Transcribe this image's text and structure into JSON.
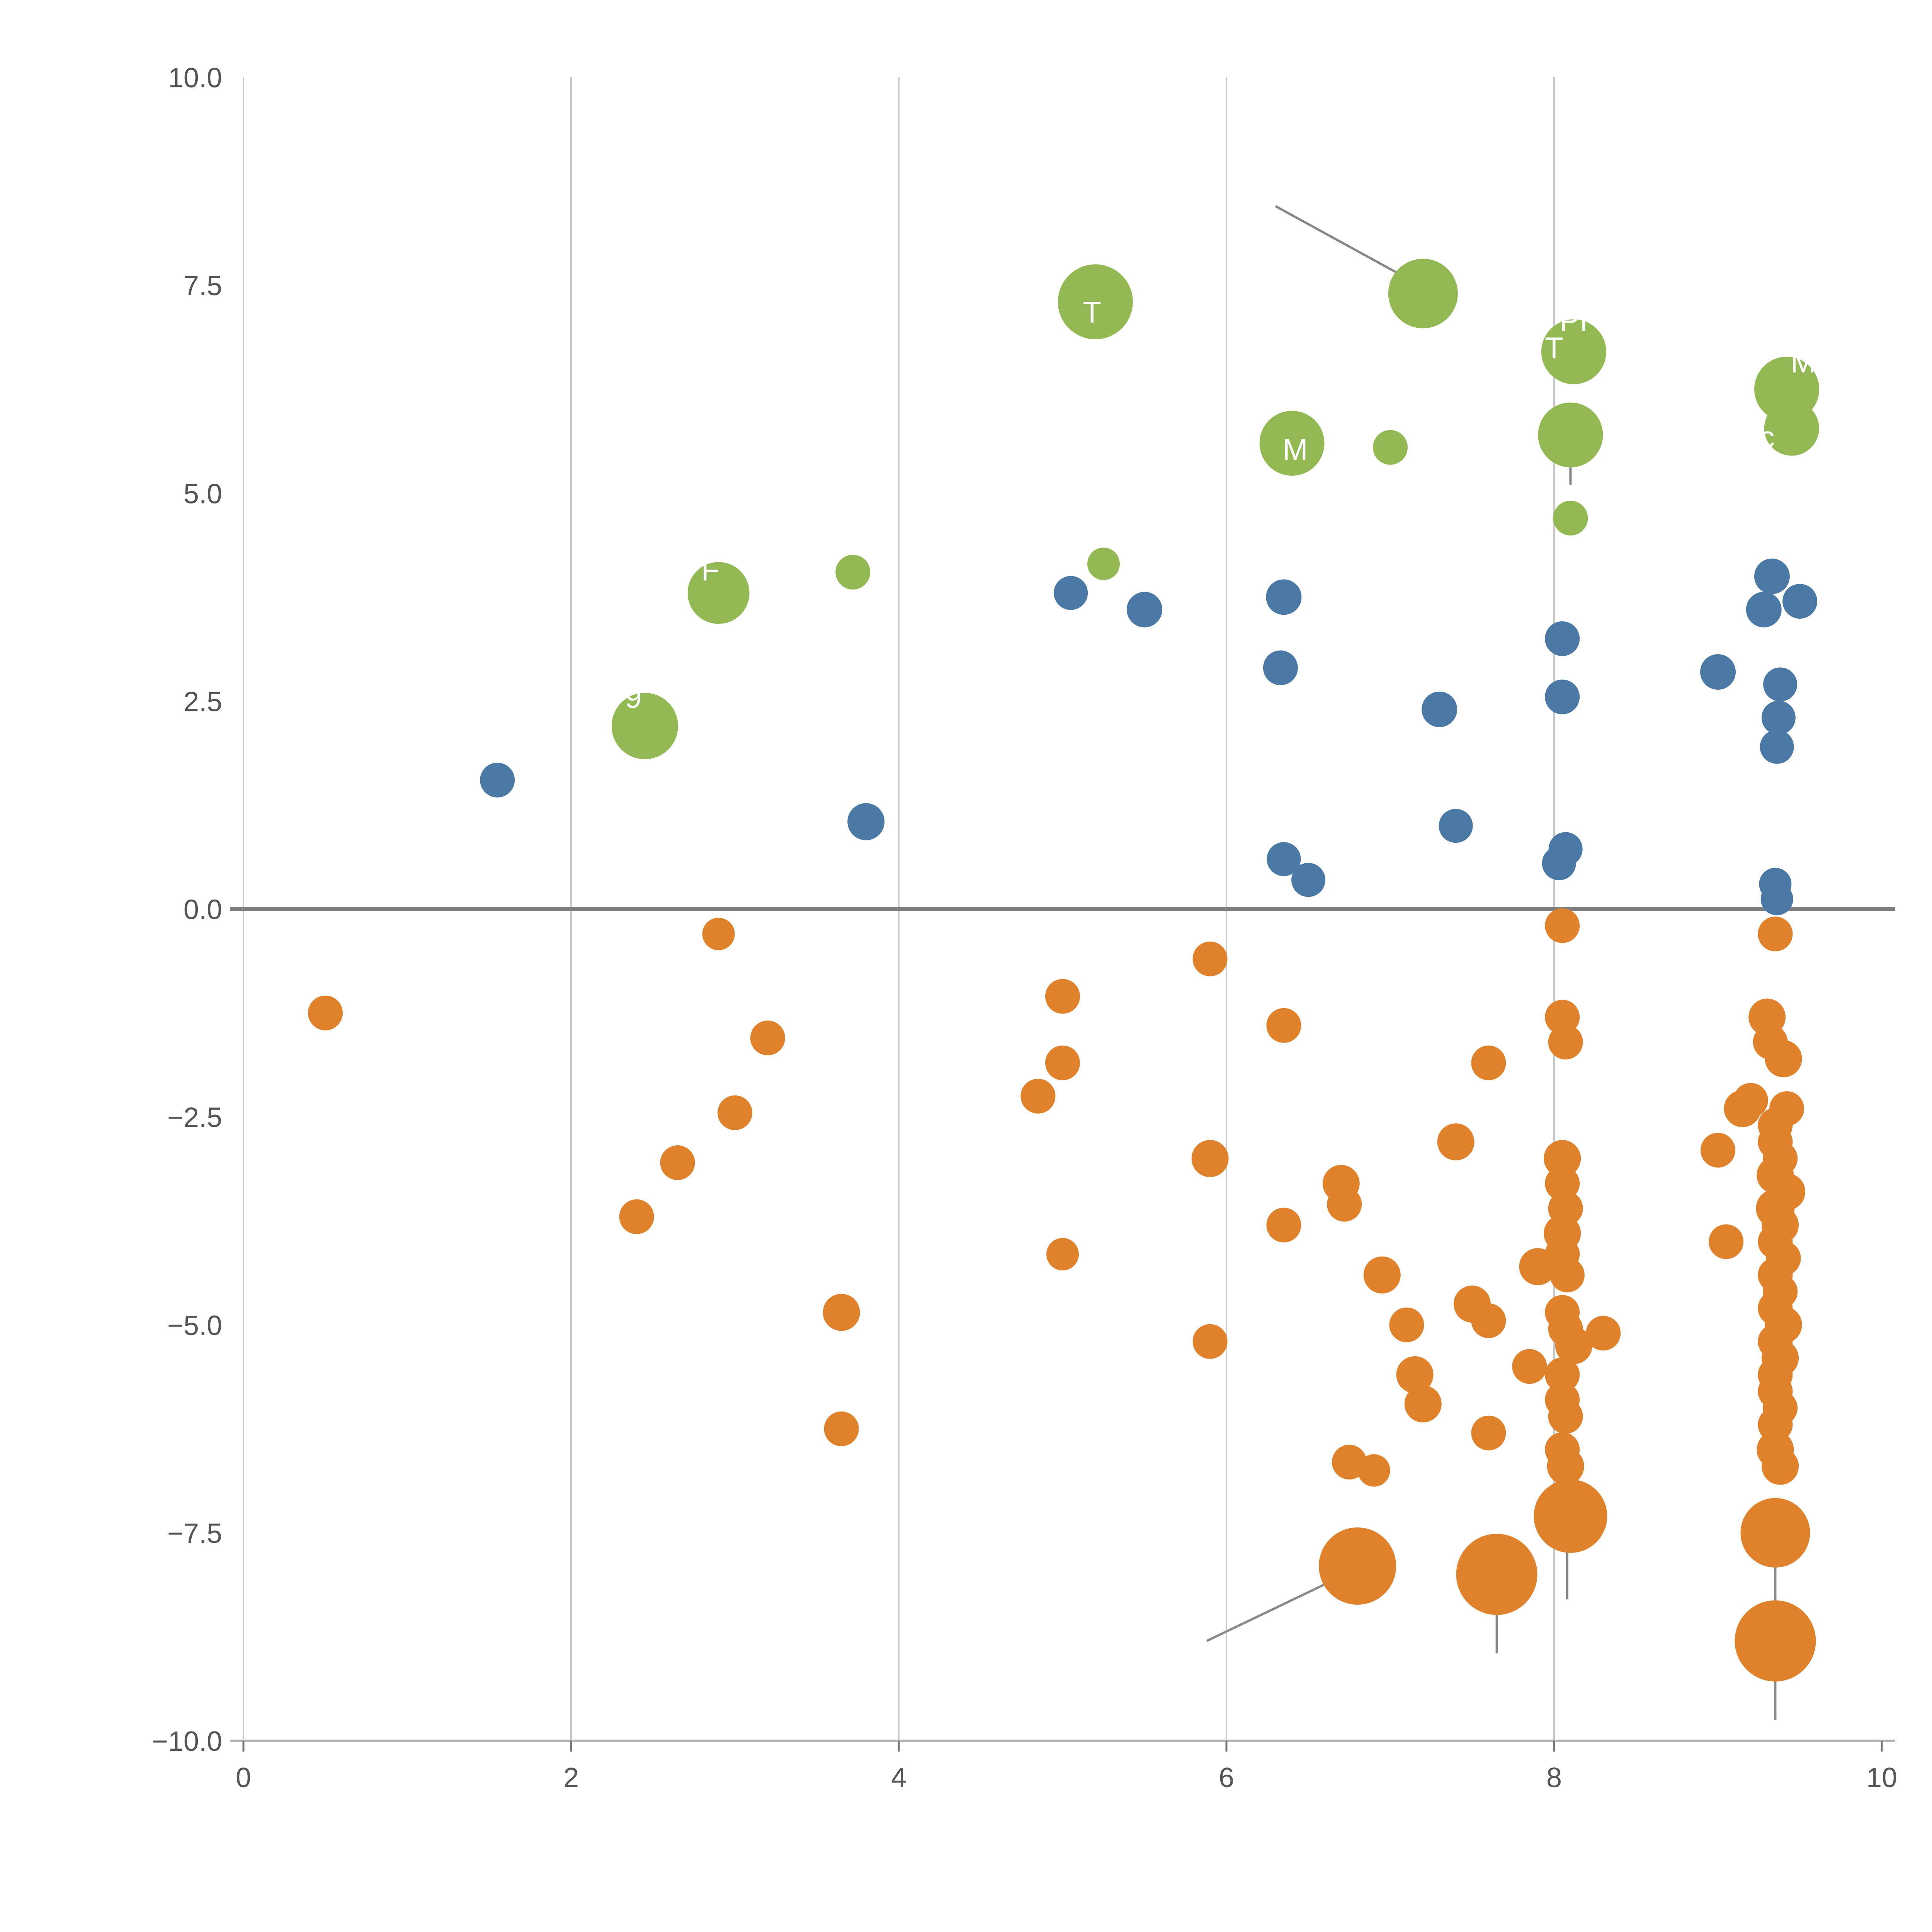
{
  "chart_data": {
    "type": "scatter",
    "title": "",
    "xlabel": "",
    "ylabel": "",
    "xlim": [
      0,
      10
    ],
    "ylim": [
      -10,
      10
    ],
    "x_ticks": [
      {
        "v": 0,
        "label": "0"
      },
      {
        "v": 2,
        "label": "2"
      },
      {
        "v": 4,
        "label": "4"
      },
      {
        "v": 6,
        "label": "6"
      },
      {
        "v": 8,
        "label": "8"
      },
      {
        "v": 10,
        "label": "10"
      }
    ],
    "y_ticks": [
      {
        "v": 10.0,
        "label": "10.0"
      },
      {
        "v": 7.5,
        "label": "7.5"
      },
      {
        "v": 5.0,
        "label": "5.0"
      },
      {
        "v": 2.5,
        "label": "2.5"
      },
      {
        "v": 0.0,
        "label": "0.0"
      },
      {
        "v": -2.5,
        "label": "−2.5"
      },
      {
        "v": -5.0,
        "label": "−5.0"
      },
      {
        "v": -7.5,
        "label": "−7.5"
      },
      {
        "v": -10.0,
        "label": "−10.0"
      }
    ],
    "grid_x": [
      2,
      4,
      6,
      8
    ],
    "grid_color": "#c8c8c8",
    "spine_color": "#aaaaaa",
    "zero_line": {
      "y": 0,
      "color": "#808080",
      "width": 10
    },
    "legend_position": "none",
    "series": [
      {
        "name": "green",
        "color": "#93b954",
        "points": [
          {
            "x": 5.2,
            "y": 7.3,
            "r": 97
          },
          {
            "x": 7.2,
            "y": 7.4,
            "r": 90
          },
          {
            "x": 8.12,
            "y": 6.7,
            "r": 84
          },
          {
            "x": 8.1,
            "y": 5.7,
            "r": 84
          },
          {
            "x": 9.42,
            "y": 6.25,
            "r": 84
          },
          {
            "x": 9.45,
            "y": 5.78,
            "r": 71
          },
          {
            "x": 6.4,
            "y": 5.6,
            "r": 84
          },
          {
            "x": 7.0,
            "y": 5.55,
            "r": 45
          },
          {
            "x": 8.1,
            "y": 4.7,
            "r": 45
          },
          {
            "x": 2.9,
            "y": 3.8,
            "r": 80
          },
          {
            "x": 3.72,
            "y": 4.05,
            "r": 45
          },
          {
            "x": 5.25,
            "y": 4.15,
            "r": 42
          },
          {
            "x": 2.45,
            "y": 2.2,
            "r": 86
          }
        ]
      },
      {
        "name": "blue",
        "color": "#4a79a5",
        "points": [
          {
            "x": 1.55,
            "y": 1.55,
            "r": 45
          },
          {
            "x": 3.8,
            "y": 1.05,
            "r": 48
          },
          {
            "x": 5.05,
            "y": 3.8,
            "r": 44
          },
          {
            "x": 5.5,
            "y": 3.6,
            "r": 46
          },
          {
            "x": 6.35,
            "y": 3.75,
            "r": 46
          },
          {
            "x": 6.33,
            "y": 2.9,
            "r": 45
          },
          {
            "x": 6.35,
            "y": 0.6,
            "r": 44
          },
          {
            "x": 6.5,
            "y": 0.35,
            "r": 44
          },
          {
            "x": 7.3,
            "y": 2.4,
            "r": 46
          },
          {
            "x": 7.4,
            "y": 1.0,
            "r": 44
          },
          {
            "x": 8.05,
            "y": 3.25,
            "r": 45
          },
          {
            "x": 8.05,
            "y": 2.55,
            "r": 45
          },
          {
            "x": 8.07,
            "y": 0.72,
            "r": 44
          },
          {
            "x": 8.03,
            "y": 0.55,
            "r": 44
          },
          {
            "x": 9.0,
            "y": 2.85,
            "r": 46
          },
          {
            "x": 9.33,
            "y": 4.0,
            "r": 46
          },
          {
            "x": 9.28,
            "y": 3.6,
            "r": 46
          },
          {
            "x": 9.5,
            "y": 3.7,
            "r": 45
          },
          {
            "x": 9.38,
            "y": 2.7,
            "r": 44
          },
          {
            "x": 9.37,
            "y": 2.3,
            "r": 44
          },
          {
            "x": 9.36,
            "y": 1.95,
            "r": 44
          },
          {
            "x": 9.35,
            "y": 0.3,
            "r": 42
          },
          {
            "x": 9.36,
            "y": 0.12,
            "r": 42
          }
        ]
      },
      {
        "name": "orange",
        "color": "#e0812b",
        "points": [
          {
            "x": 0.5,
            "y": -1.25,
            "r": 45
          },
          {
            "x": 2.4,
            "y": -3.7,
            "r": 45
          },
          {
            "x": 2.65,
            "y": -3.05,
            "r": 45
          },
          {
            "x": 2.9,
            "y": -0.3,
            "r": 42
          },
          {
            "x": 3.0,
            "y": -2.45,
            "r": 45
          },
          {
            "x": 3.2,
            "y": -1.55,
            "r": 45
          },
          {
            "x": 3.65,
            "y": -4.85,
            "r": 48
          },
          {
            "x": 3.65,
            "y": -6.25,
            "r": 45
          },
          {
            "x": 4.85,
            "y": -2.25,
            "r": 45
          },
          {
            "x": 5.0,
            "y": -1.05,
            "r": 45
          },
          {
            "x": 5.0,
            "y": -1.85,
            "r": 45
          },
          {
            "x": 5.0,
            "y": -4.15,
            "r": 42
          },
          {
            "x": 5.9,
            "y": -0.6,
            "r": 45
          },
          {
            "x": 5.9,
            "y": -3.0,
            "r": 48
          },
          {
            "x": 5.9,
            "y": -5.2,
            "r": 45
          },
          {
            "x": 6.35,
            "y": -1.4,
            "r": 45
          },
          {
            "x": 6.35,
            "y": -3.8,
            "r": 45
          },
          {
            "x": 6.7,
            "y": -3.3,
            "r": 48
          },
          {
            "x": 6.72,
            "y": -3.55,
            "r": 45
          },
          {
            "x": 6.75,
            "y": -6.65,
            "r": 45
          },
          {
            "x": 6.9,
            "y": -6.75,
            "r": 42
          },
          {
            "x": 6.8,
            "y": -7.9,
            "r": 100
          },
          {
            "x": 6.95,
            "y": -4.4,
            "r": 48
          },
          {
            "x": 7.1,
            "y": -5.0,
            "r": 45
          },
          {
            "x": 7.15,
            "y": -5.6,
            "r": 48
          },
          {
            "x": 7.2,
            "y": -5.95,
            "r": 48
          },
          {
            "x": 7.4,
            "y": -2.8,
            "r": 48
          },
          {
            "x": 7.5,
            "y": -4.75,
            "r": 48
          },
          {
            "x": 7.6,
            "y": -4.95,
            "r": 45
          },
          {
            "x": 7.6,
            "y": -1.85,
            "r": 45
          },
          {
            "x": 7.6,
            "y": -6.3,
            "r": 45
          },
          {
            "x": 7.65,
            "y": -8.0,
            "r": 105
          },
          {
            "x": 7.85,
            "y": -5.5,
            "r": 45
          },
          {
            "x": 7.9,
            "y": -4.3,
            "r": 48
          },
          {
            "x": 8.05,
            "y": -0.2,
            "r": 45
          },
          {
            "x": 8.05,
            "y": -1.3,
            "r": 45
          },
          {
            "x": 8.07,
            "y": -1.6,
            "r": 45
          },
          {
            "x": 8.05,
            "y": -3.0,
            "r": 48
          },
          {
            "x": 8.05,
            "y": -3.3,
            "r": 45
          },
          {
            "x": 8.07,
            "y": -3.6,
            "r": 45
          },
          {
            "x": 8.05,
            "y": -3.9,
            "r": 48
          },
          {
            "x": 8.05,
            "y": -4.15,
            "r": 45
          },
          {
            "x": 8.08,
            "y": -4.4,
            "r": 45
          },
          {
            "x": 8.05,
            "y": -4.85,
            "r": 45
          },
          {
            "x": 8.07,
            "y": -5.05,
            "r": 45
          },
          {
            "x": 8.12,
            "y": -5.25,
            "r": 48
          },
          {
            "x": 8.05,
            "y": -5.6,
            "r": 45
          },
          {
            "x": 8.05,
            "y": -5.9,
            "r": 45
          },
          {
            "x": 8.07,
            "y": -6.1,
            "r": 45
          },
          {
            "x": 8.05,
            "y": -6.5,
            "r": 45
          },
          {
            "x": 8.07,
            "y": -6.7,
            "r": 48
          },
          {
            "x": 8.1,
            "y": -7.3,
            "r": 95
          },
          {
            "x": 8.3,
            "y": -5.1,
            "r": 45
          },
          {
            "x": 9.0,
            "y": -2.9,
            "r": 45
          },
          {
            "x": 9.05,
            "y": -4.0,
            "r": 45
          },
          {
            "x": 9.15,
            "y": -2.4,
            "r": 48
          },
          {
            "x": 9.3,
            "y": -1.3,
            "r": 48
          },
          {
            "x": 9.32,
            "y": -1.6,
            "r": 45
          },
          {
            "x": 9.4,
            "y": -1.8,
            "r": 48
          },
          {
            "x": 9.2,
            "y": -2.3,
            "r": 45
          },
          {
            "x": 9.42,
            "y": -2.4,
            "r": 45
          },
          {
            "x": 9.35,
            "y": -2.6,
            "r": 45
          },
          {
            "x": 9.35,
            "y": -2.8,
            "r": 45
          },
          {
            "x": 9.38,
            "y": -3.0,
            "r": 45
          },
          {
            "x": 9.35,
            "y": -3.2,
            "r": 48
          },
          {
            "x": 9.42,
            "y": -3.4,
            "r": 48
          },
          {
            "x": 9.35,
            "y": -3.6,
            "r": 50
          },
          {
            "x": 9.38,
            "y": -3.8,
            "r": 48
          },
          {
            "x": 9.35,
            "y": -4.0,
            "r": 45
          },
          {
            "x": 9.4,
            "y": -4.2,
            "r": 45
          },
          {
            "x": 9.35,
            "y": -4.4,
            "r": 45
          },
          {
            "x": 9.38,
            "y": -4.6,
            "r": 45
          },
          {
            "x": 9.35,
            "y": -4.8,
            "r": 45
          },
          {
            "x": 9.4,
            "y": -5.0,
            "r": 48
          },
          {
            "x": 9.35,
            "y": -5.2,
            "r": 45
          },
          {
            "x": 9.38,
            "y": -5.4,
            "r": 48
          },
          {
            "x": 9.35,
            "y": -5.6,
            "r": 45
          },
          {
            "x": 9.35,
            "y": -5.8,
            "r": 45
          },
          {
            "x": 9.38,
            "y": -6.0,
            "r": 45
          },
          {
            "x": 9.35,
            "y": -6.2,
            "r": 45
          },
          {
            "x": 9.35,
            "y": -6.5,
            "r": 48
          },
          {
            "x": 9.38,
            "y": -6.7,
            "r": 48
          },
          {
            "x": 9.35,
            "y": -0.3,
            "r": 45
          },
          {
            "x": 9.35,
            "y": -7.5,
            "r": 90
          },
          {
            "x": 9.35,
            "y": -8.8,
            "r": 105
          }
        ]
      }
    ],
    "annotations": [
      {
        "text": "T",
        "x": 5.18,
        "y": 7.05
      },
      {
        "text": "PI",
        "x": 8.12,
        "y": 6.95
      },
      {
        "text": "T",
        "x": 8.0,
        "y": 6.62
      },
      {
        "text": "M",
        "x": 9.52,
        "y": 6.45
      },
      {
        "text": "c",
        "x": 9.3,
        "y": 5.55
      },
      {
        "text": "M",
        "x": 6.42,
        "y": 5.4
      },
      {
        "text": "F",
        "x": 2.85,
        "y": 3.95
      },
      {
        "text": "9",
        "x": 2.38,
        "y": 2.42
      }
    ],
    "leader_lines": [
      {
        "x1": 6.3,
        "y1": 8.45,
        "x2": 7.18,
        "y2": 7.5
      },
      {
        "x1": 5.88,
        "y1": -8.8,
        "x2": 6.78,
        "y2": -7.95
      },
      {
        "x1": 7.65,
        "y1": -8.35,
        "x2": 7.65,
        "y2": -8.95
      },
      {
        "x1": 8.08,
        "y1": -7.55,
        "x2": 8.08,
        "y2": -8.3
      },
      {
        "x1": 9.35,
        "y1": -7.6,
        "x2": 9.35,
        "y2": -9.75
      },
      {
        "x1": 8.1,
        "y1": 5.45,
        "x2": 8.1,
        "y2": 5.1
      }
    ]
  }
}
